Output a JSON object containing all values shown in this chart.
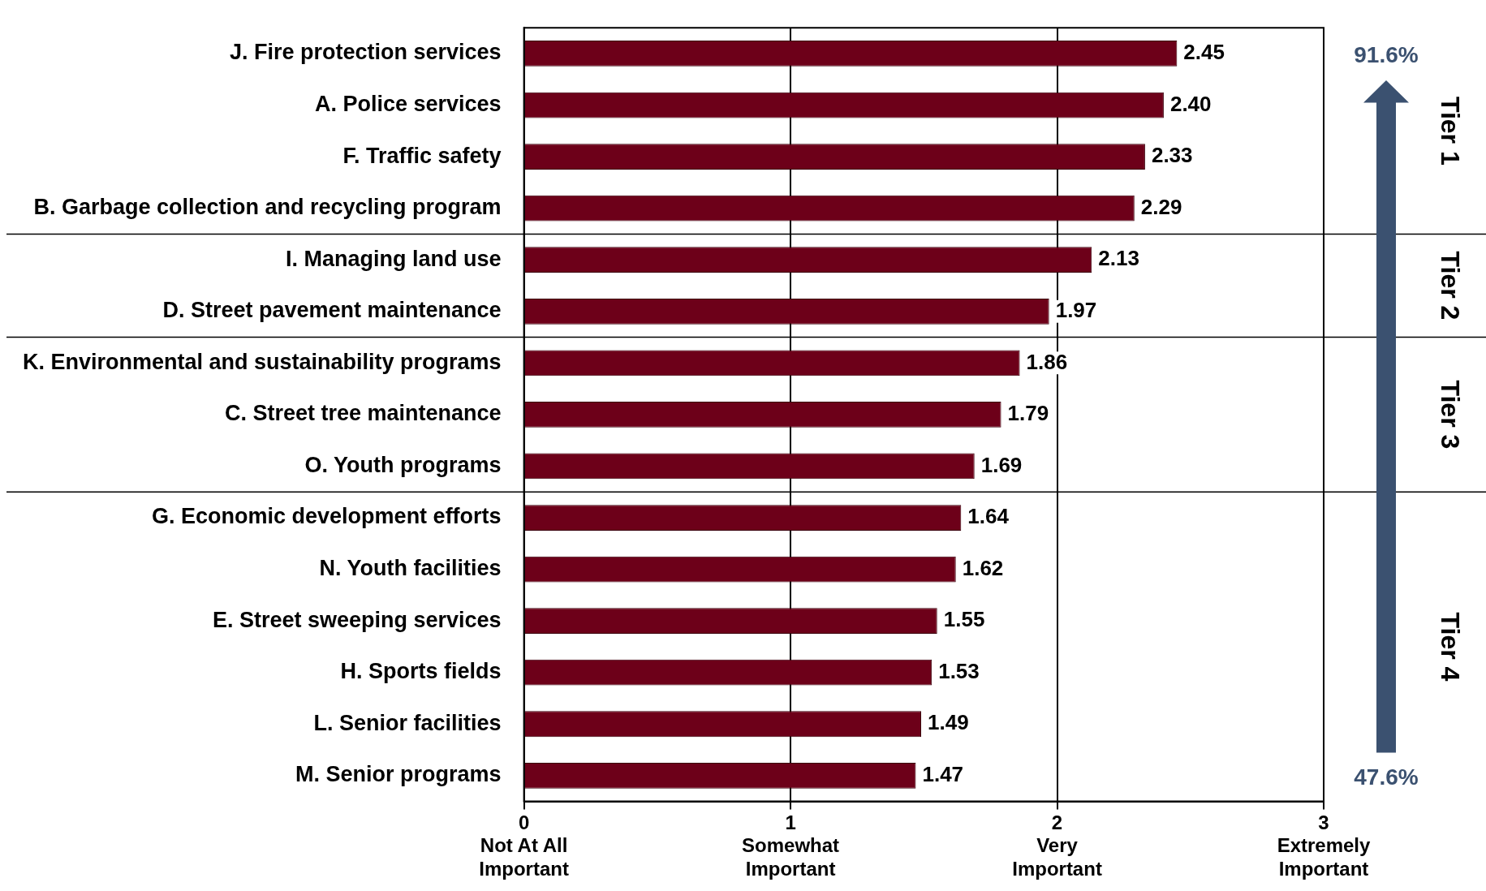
{
  "chart_data": {
    "type": "bar",
    "orientation": "horizontal",
    "categories": [
      "J. Fire protection services",
      "A. Police services",
      "F. Traffic safety",
      "B. Garbage collection and recycling program",
      "I. Managing land use",
      "D. Street pavement maintenance",
      "K. Environmental and sustainability programs",
      "C. Street tree maintenance",
      "O. Youth programs",
      "G. Economic development efforts",
      "N. Youth facilities",
      "E. Street sweeping services",
      "H. Sports fields",
      "L. Senior facilities",
      "M. Senior programs"
    ],
    "values": [
      2.45,
      2.4,
      2.33,
      2.29,
      2.13,
      1.97,
      1.86,
      1.79,
      1.69,
      1.64,
      1.62,
      1.55,
      1.53,
      1.49,
      1.47
    ],
    "color": "#6d0019",
    "value_labels": [
      "2.45",
      "2.40",
      "2.33",
      "2.29",
      "2.13",
      "1.97",
      "1.86",
      "1.79",
      "1.69",
      "1.64",
      "1.62",
      "1.55",
      "1.53",
      "1.49",
      "1.47"
    ],
    "xlim": [
      0,
      3
    ],
    "xticks": [
      {
        "value": 0,
        "label": "0\nNot At All\nImportant"
      },
      {
        "value": 1,
        "label": "1\nSomewhat\nImportant"
      },
      {
        "value": 2,
        "label": "2\nVery\nImportant"
      },
      {
        "value": 3,
        "label": "3\nExtremely\nImportant"
      }
    ],
    "grid": "x",
    "legend": false,
    "annotations": [
      "91.6%",
      "47.6%",
      "Tier 1",
      "Tier 2",
      "Tier 3",
      "Tier 4"
    ]
  }
}
